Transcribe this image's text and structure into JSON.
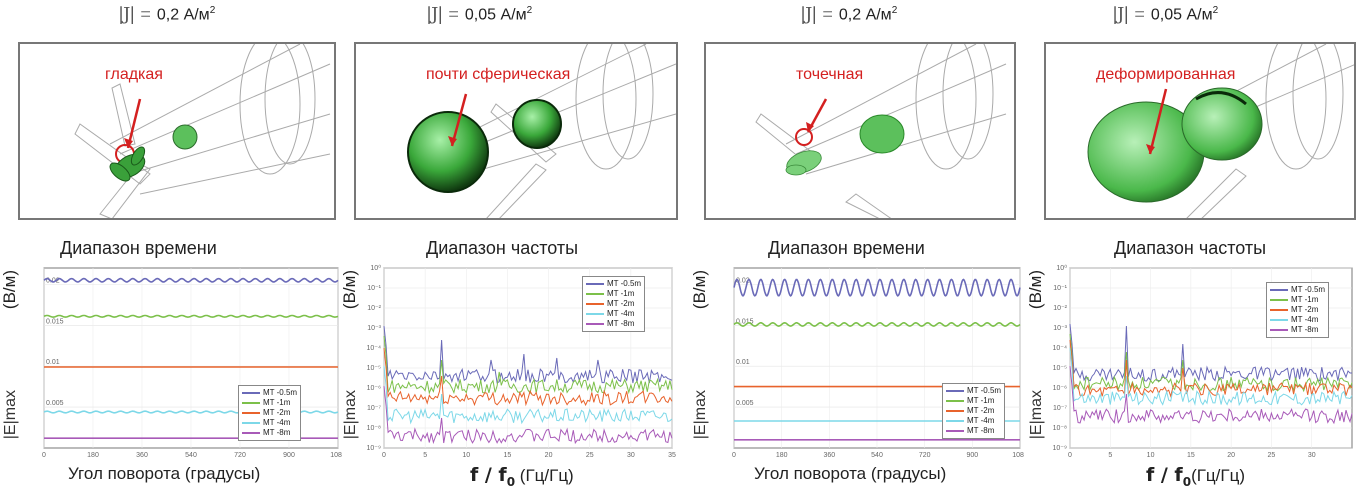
{
  "panels": [
    {
      "id": "p1",
      "current_density": "0,2 А/м",
      "current_exp": "2",
      "sim_label": "гладкая",
      "section_title": "Диапазон времени",
      "ylabel": "(В/м)",
      "ylabel_sub": "|E|max",
      "xlabel": "Угол поворота (градусы)",
      "xlabel_unit": ""
    },
    {
      "id": "p2",
      "current_density": "0,05 А/м",
      "current_exp": "2",
      "sim_label": "почти сферическая",
      "section_title": "Диапазон частоты",
      "ylabel": "(В/м)",
      "ylabel_sub": "|E|max",
      "xlabel": "f / f",
      "xlabel_sub": "0",
      "xlabel_unit": " (Гц/Гц)"
    },
    {
      "id": "p3",
      "current_density": "0,2 А/м",
      "current_exp": "2",
      "sim_label": "точечная",
      "section_title": "Диапазон времени",
      "ylabel": "(В/м)",
      "ylabel_sub": "|E|max",
      "xlabel": "Угол поворота (градусы)",
      "xlabel_unit": ""
    },
    {
      "id": "p4",
      "current_density": "0,05 А/м",
      "current_exp": "2",
      "sim_label": "деформированная",
      "section_title": "Диапазон частоты",
      "ylabel": "(В/м)",
      "ylabel_sub": "|E|max",
      "xlabel": "f / f",
      "xlabel_sub": "0",
      "xlabel_unit": "(Гц/Гц)"
    }
  ],
  "legend_labels": [
    "MT -0.5m",
    "MT -1m",
    "MT -2m",
    "MT -4m",
    "MT -8m"
  ],
  "series_colors": [
    "#6a6ab8",
    "#7cc04a",
    "#e8632c",
    "#7dd8e8",
    "#a85ab8"
  ],
  "chart_data": [
    {
      "type": "line",
      "panel": "time-range-left",
      "xlabel": "Угол поворота (градусы)",
      "ylabel": "(В/м)",
      "xlim": [
        0,
        1080
      ],
      "ylim": [
        0,
        0.022
      ],
      "xticks": [
        0,
        180,
        360,
        540,
        720,
        900,
        1080
      ],
      "yticks": [
        0.005,
        0.01,
        0.015,
        0.02
      ],
      "series": [
        {
          "name": "MT -0.5m",
          "level": 0.0205,
          "ripple": 0.0002,
          "cycles": 24
        },
        {
          "name": "MT -1m",
          "level": 0.0161,
          "ripple": 0.0001,
          "cycles": 24
        },
        {
          "name": "MT -2m",
          "level": 0.0099,
          "ripple": 0.0,
          "cycles": 0
        },
        {
          "name": "MT -4m",
          "level": 0.0044,
          "ripple": 0.0001,
          "cycles": 24
        },
        {
          "name": "MT -8m",
          "level": 0.0012,
          "ripple": 0.0,
          "cycles": 0
        }
      ]
    },
    {
      "type": "line",
      "panel": "frequency-range-left",
      "xlabel": "f / f0 (Гц/Гц)",
      "ylabel": "(В/м)",
      "yscale": "log",
      "xlim": [
        0,
        35
      ],
      "ylim_exp": [
        -9,
        0
      ],
      "xticks": [
        0,
        5,
        10,
        15,
        20,
        25,
        30,
        35
      ],
      "series": [
        {
          "name": "MT -0.5m",
          "level_exp": -5.4,
          "spikes": [
            [
              7,
              -3.6
            ],
            [
              13,
              -4.6
            ],
            [
              17,
              -4.3
            ],
            [
              21,
              -4.5
            ],
            [
              26,
              -4.6
            ]
          ]
        },
        {
          "name": "MT -1m",
          "level_exp": -5.9,
          "spikes": [
            [
              7,
              -4.6
            ],
            [
              14,
              -5.2
            ]
          ]
        },
        {
          "name": "MT -2m",
          "level_exp": -6.5,
          "spikes": [
            [
              7,
              -5.4
            ]
          ]
        },
        {
          "name": "MT -4m",
          "level_exp": -7.4,
          "spikes": [
            [
              7,
              -6.3
            ]
          ]
        },
        {
          "name": "MT -8m",
          "level_exp": -8.4,
          "spikes": [
            [
              7,
              -7.5
            ]
          ]
        }
      ]
    },
    {
      "type": "line",
      "panel": "time-range-right",
      "xlabel": "Угол поворота (градусы)",
      "ylabel": "(В/м)",
      "xlim": [
        0,
        1080
      ],
      "ylim": [
        0,
        0.022
      ],
      "xticks": [
        0,
        180,
        360,
        540,
        720,
        900,
        1080
      ],
      "yticks": [
        0.005,
        0.01,
        0.015,
        0.02
      ],
      "series": [
        {
          "name": "MT -0.5m",
          "level": 0.0196,
          "ripple": 0.001,
          "cycles": 24
        },
        {
          "name": "MT -1m",
          "level": 0.0151,
          "ripple": 0.0002,
          "cycles": 24
        },
        {
          "name": "MT -2m",
          "level": 0.0075,
          "ripple": 0.0,
          "cycles": 0
        },
        {
          "name": "MT -4m",
          "level": 0.0033,
          "ripple": 0.0,
          "cycles": 0
        },
        {
          "name": "MT -8m",
          "level": 0.001,
          "ripple": 0.0,
          "cycles": 0
        }
      ]
    },
    {
      "type": "line",
      "panel": "frequency-range-right",
      "xlabel": "f / f0 (Гц/Гц)",
      "ylabel": "(В/м)",
      "yscale": "log",
      "xlim": [
        0,
        35
      ],
      "ylim_exp": [
        -9,
        0
      ],
      "xticks": [
        0,
        5,
        10,
        15,
        20,
        25,
        30
      ],
      "series": [
        {
          "name": "MT -0.5m",
          "level_exp": -5.3,
          "spikes": [
            [
              7,
              -2.9
            ],
            [
              14,
              -3.8
            ]
          ]
        },
        {
          "name": "MT -1m",
          "level_exp": -5.8,
          "spikes": [
            [
              7,
              -4.2
            ],
            [
              14,
              -4.6
            ]
          ]
        },
        {
          "name": "MT -2m",
          "level_exp": -6.1,
          "spikes": [
            [
              7,
              -4.6
            ],
            [
              14,
              -5.0
            ]
          ]
        },
        {
          "name": "MT -4m",
          "level_exp": -6.5,
          "spikes": [
            [
              7,
              -5.4
            ]
          ]
        },
        {
          "name": "MT -8m",
          "level_exp": -7.4,
          "spikes": [
            [
              7,
              -6.3
            ]
          ]
        }
      ]
    }
  ]
}
